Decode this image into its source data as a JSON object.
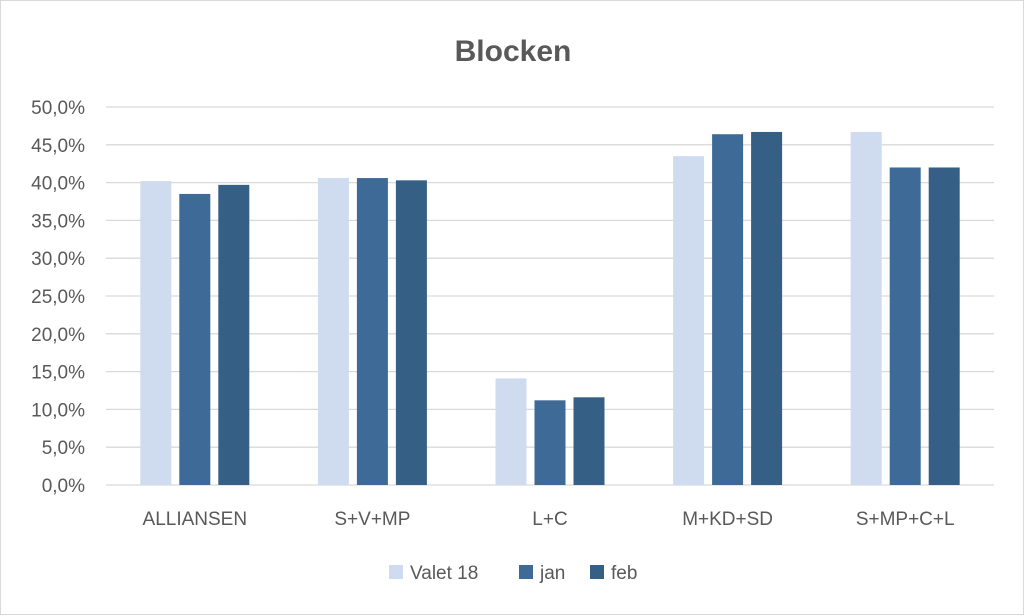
{
  "chart_data": {
    "type": "bar",
    "title": "Blocken",
    "categories": [
      "ALLIANSEN",
      "S+V+MP",
      "L+C",
      "M+KD+SD",
      "S+MP+C+L"
    ],
    "series": [
      {
        "name": "Valet 18",
        "color": "#cfdcef",
        "values": [
          40.2,
          40.6,
          14.1,
          43.5,
          46.7
        ]
      },
      {
        "name": "jan",
        "color": "#3d6a96",
        "values": [
          38.5,
          40.6,
          11.2,
          46.4,
          42.0
        ]
      },
      {
        "name": "feb",
        "color": "#365f85",
        "values": [
          39.7,
          40.3,
          11.6,
          46.7,
          42.0
        ]
      }
    ],
    "ylim": [
      0,
      50
    ],
    "yticks": [
      "0,0%",
      "5,0%",
      "10,0%",
      "15,0%",
      "20,0%",
      "25,0%",
      "30,0%",
      "35,0%",
      "40,0%",
      "45,0%",
      "50,0%"
    ],
    "grid": true,
    "legend_position": "bottom",
    "gridline_color": "#d9d9d9",
    "text_color": "#595959"
  }
}
